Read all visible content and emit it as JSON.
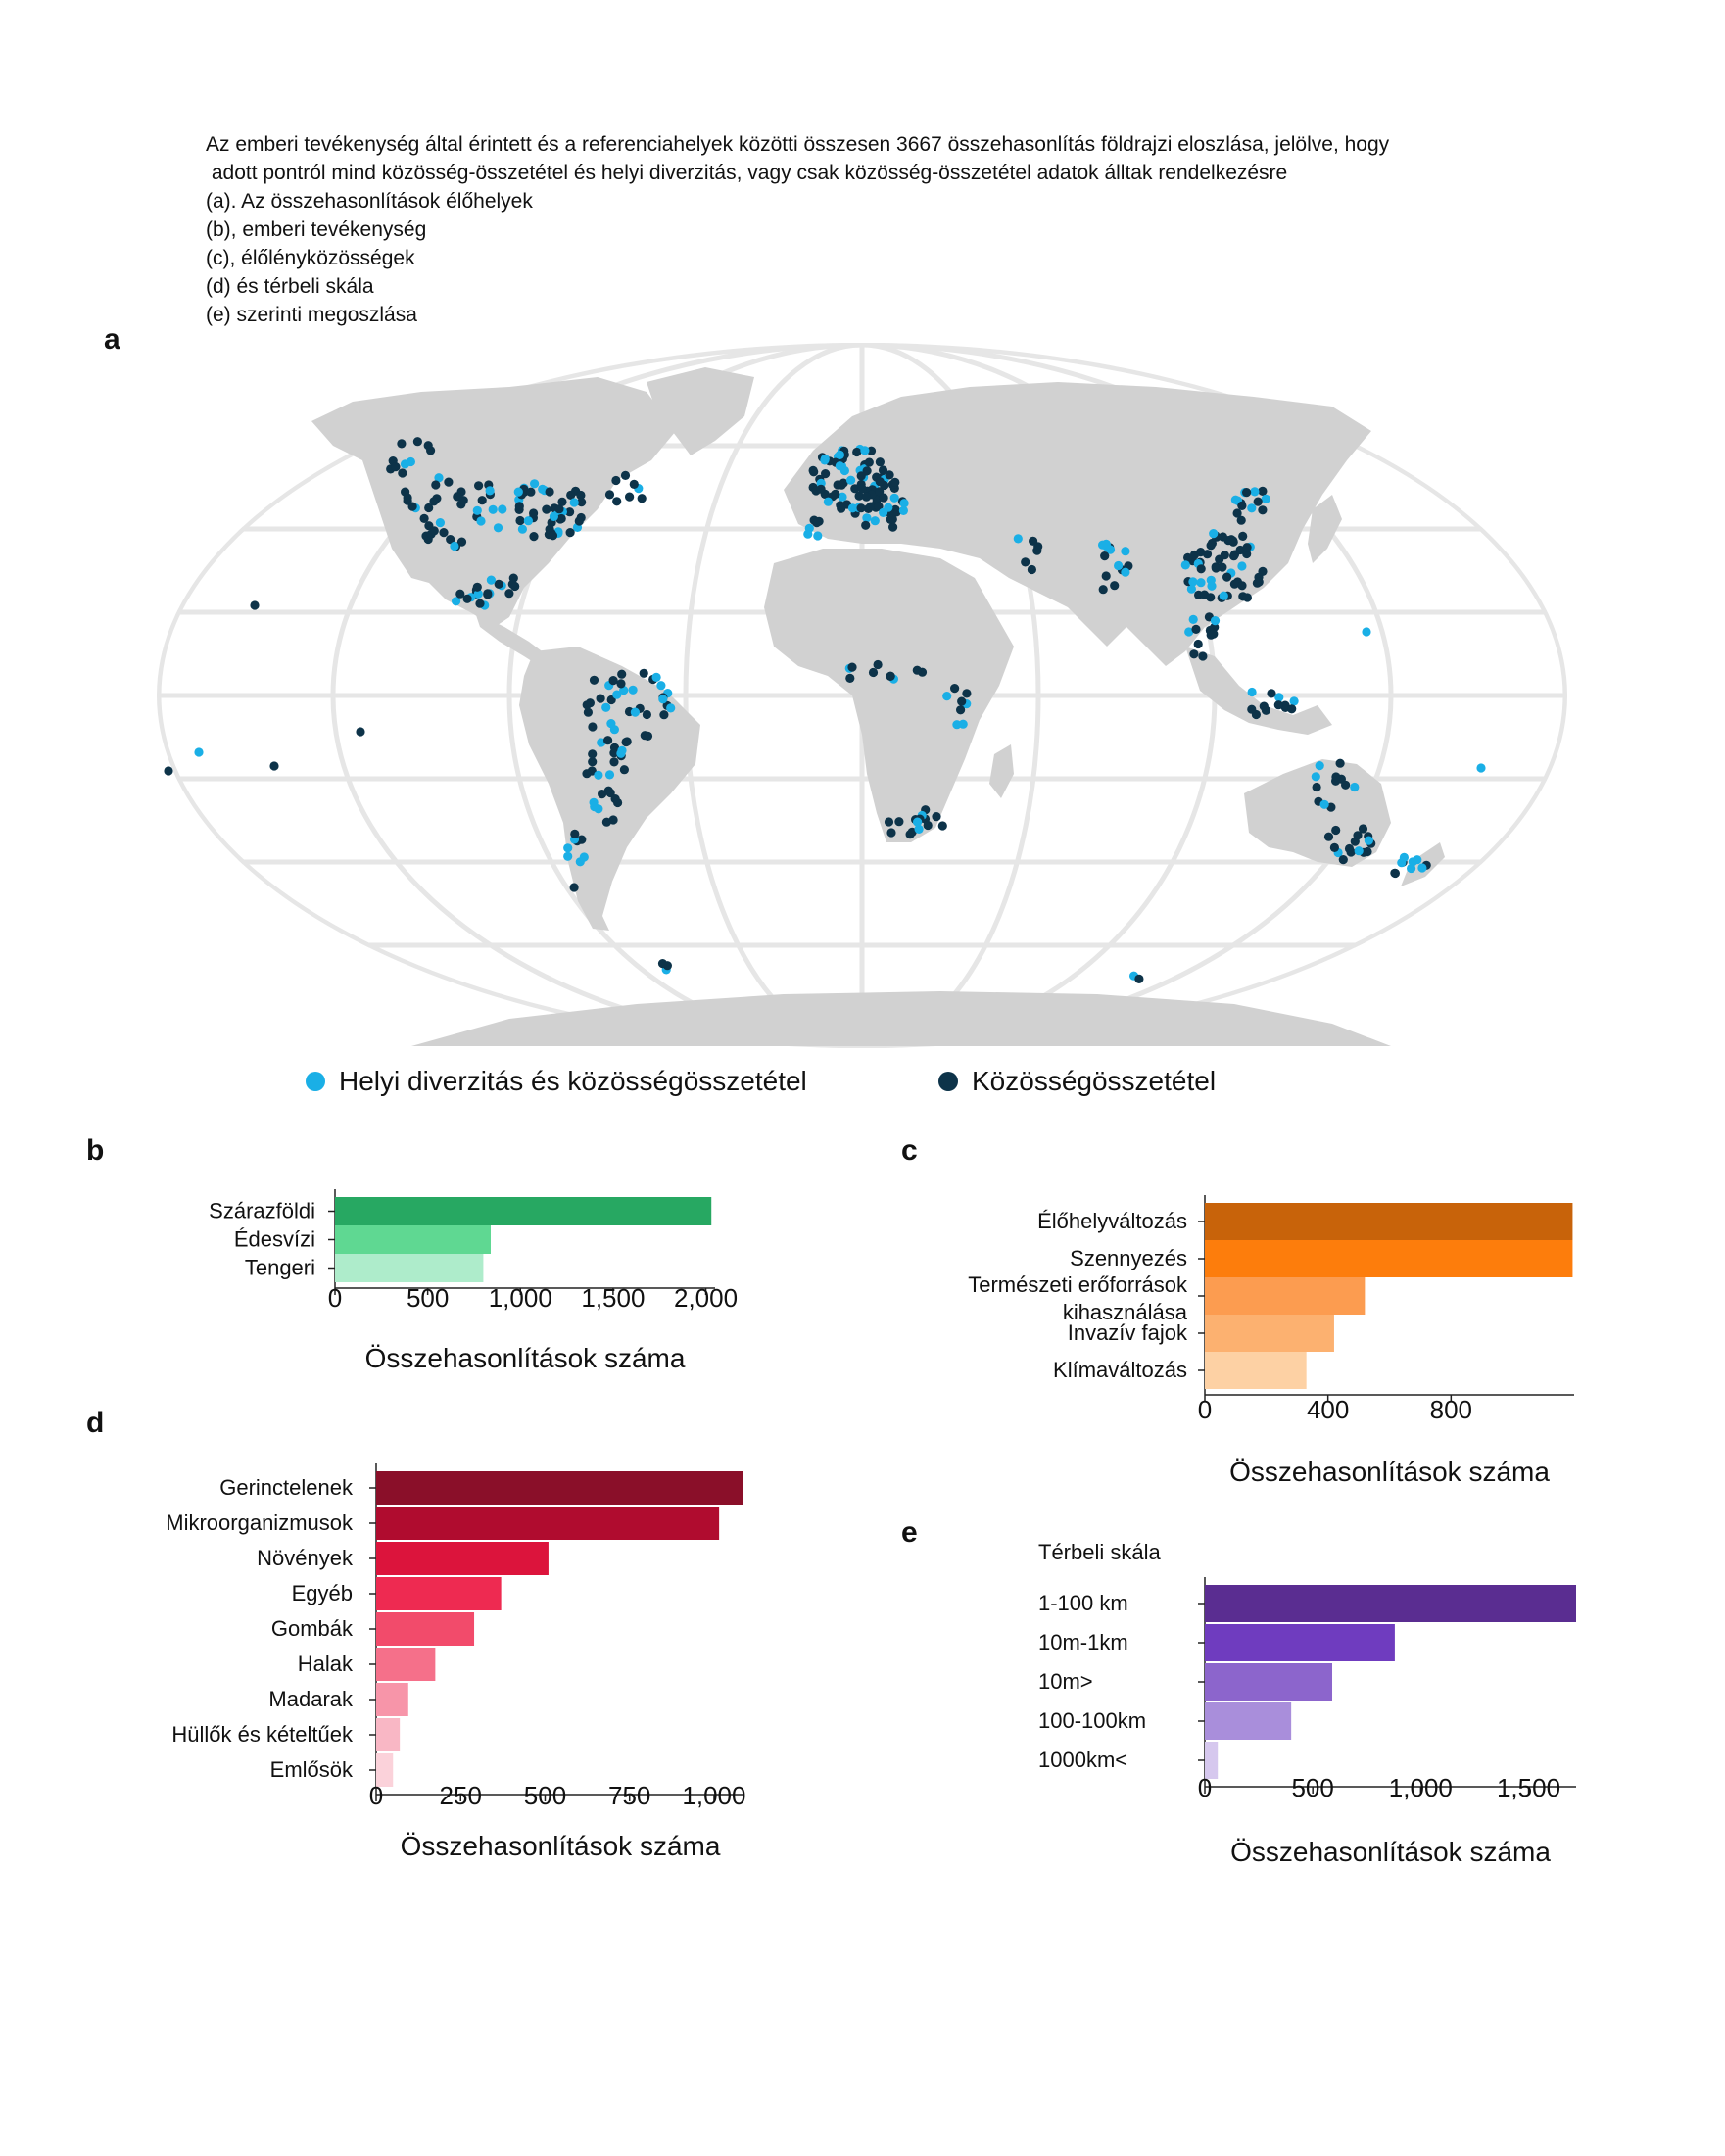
{
  "caption": [
    "Az emberi tevékenység által érintett és a referenciahelyek közötti összesen 3667 összehasonlítás földrajzi eloszlása, jelölve, hogy",
    " adott pontról mind közösség-összetétel és helyi diverzitás, vagy csak közösség-összetétel adatok álltak rendelkezésre",
    "(a). Az összehasonlítások élőhelyek",
    "(b), emberi tevékenység",
    "(c), élőlényközösségek",
    "(d) és térbeli skála",
    "(e) szerinti megoszlása"
  ],
  "panels": {
    "a": "a",
    "b": "b",
    "c": "c",
    "d": "d",
    "e": "e"
  },
  "colors": {
    "light_point": "#1aafe6",
    "dark_point": "#0d3349",
    "land": "#d1d1d1",
    "grid": "#e6e6e6"
  },
  "map_legend": {
    "light": "Helyi diverzitás és közösségösszetétel",
    "dark": "Közösségösszetétel"
  },
  "chart_data": [
    {
      "id": "b",
      "type": "bar",
      "orientation": "horizontal",
      "categories": [
        "Szárazföldi",
        "Édesvízi",
        "Tengeri"
      ],
      "values": [
        2030,
        840,
        800
      ],
      "colors": [
        "#27a862",
        "#5fd892",
        "#aeeccb"
      ],
      "xlim": [
        0,
        2050
      ],
      "xticks": [
        0,
        500,
        1000,
        1500,
        2000
      ],
      "xtick_labels": [
        "0",
        "500",
        "1,000",
        "1,500",
        "2,000"
      ],
      "xlabel": "Összehasonlítások száma"
    },
    {
      "id": "c",
      "type": "bar",
      "orientation": "horizontal",
      "categories": [
        "Élőhelyváltozás",
        "Szennyezés",
        "Természeti erőforrások kihasználása",
        "Invazív fajok",
        "Klímaváltozás"
      ],
      "category_lines": [
        [
          "Élőhelyváltozás"
        ],
        [
          "Szennyezés"
        ],
        [
          "Természeti erőforrások",
          "kihasználása"
        ],
        [
          "Invazív fajok"
        ],
        [
          "Klímaváltozás"
        ]
      ],
      "values": [
        1195,
        1195,
        520,
        420,
        330
      ],
      "colors": [
        "#c8630a",
        "#fd7d0c",
        "#fc9c50",
        "#fcb170",
        "#fdd1a4"
      ],
      "xlim": [
        0,
        1200
      ],
      "xticks": [
        0,
        400,
        800
      ],
      "xtick_labels": [
        "0",
        "400",
        "800"
      ],
      "xlabel": "Összehasonlítások száma"
    },
    {
      "id": "d",
      "type": "bar",
      "orientation": "horizontal",
      "categories": [
        "Gerinctelenek",
        "Mikroorganizmusok",
        "Növények",
        "Egyéb",
        "Gombák",
        "Halak",
        "Madarak",
        "Hüllők és kételtűek",
        "Emlősök"
      ],
      "values": [
        1085,
        1015,
        510,
        370,
        290,
        175,
        95,
        70,
        50
      ],
      "colors": [
        "#8a0f29",
        "#b00c2f",
        "#dc143c",
        "#ee2a51",
        "#f24b6b",
        "#f5708a",
        "#f795a9",
        "#f9b7c5",
        "#fbd2da"
      ],
      "xlim": [
        0,
        1090
      ],
      "xticks": [
        0,
        250,
        500,
        750,
        1000
      ],
      "xtick_labels": [
        "0",
        "250",
        "500",
        "750",
        "1,000"
      ],
      "xlabel": "Összehasonlítások száma"
    },
    {
      "id": "e",
      "type": "bar",
      "orientation": "horizontal",
      "title": "Térbeli skála",
      "categories": [
        "1-100 km",
        "10m-1km",
        "10m>",
        "100-100km",
        "1000km<"
      ],
      "values": [
        1720,
        880,
        590,
        400,
        60
      ],
      "colors": [
        "#5a2d91",
        "#6f3cbf",
        "#8c65cc",
        "#a98edb",
        "#d6c8ee"
      ],
      "xlim": [
        0,
        1720
      ],
      "xticks": [
        0,
        500,
        1000,
        1500
      ],
      "xtick_labels": [
        "0",
        "500",
        "1,000",
        "1,500"
      ],
      "xlabel": "Összehasonlítások száma"
    }
  ]
}
